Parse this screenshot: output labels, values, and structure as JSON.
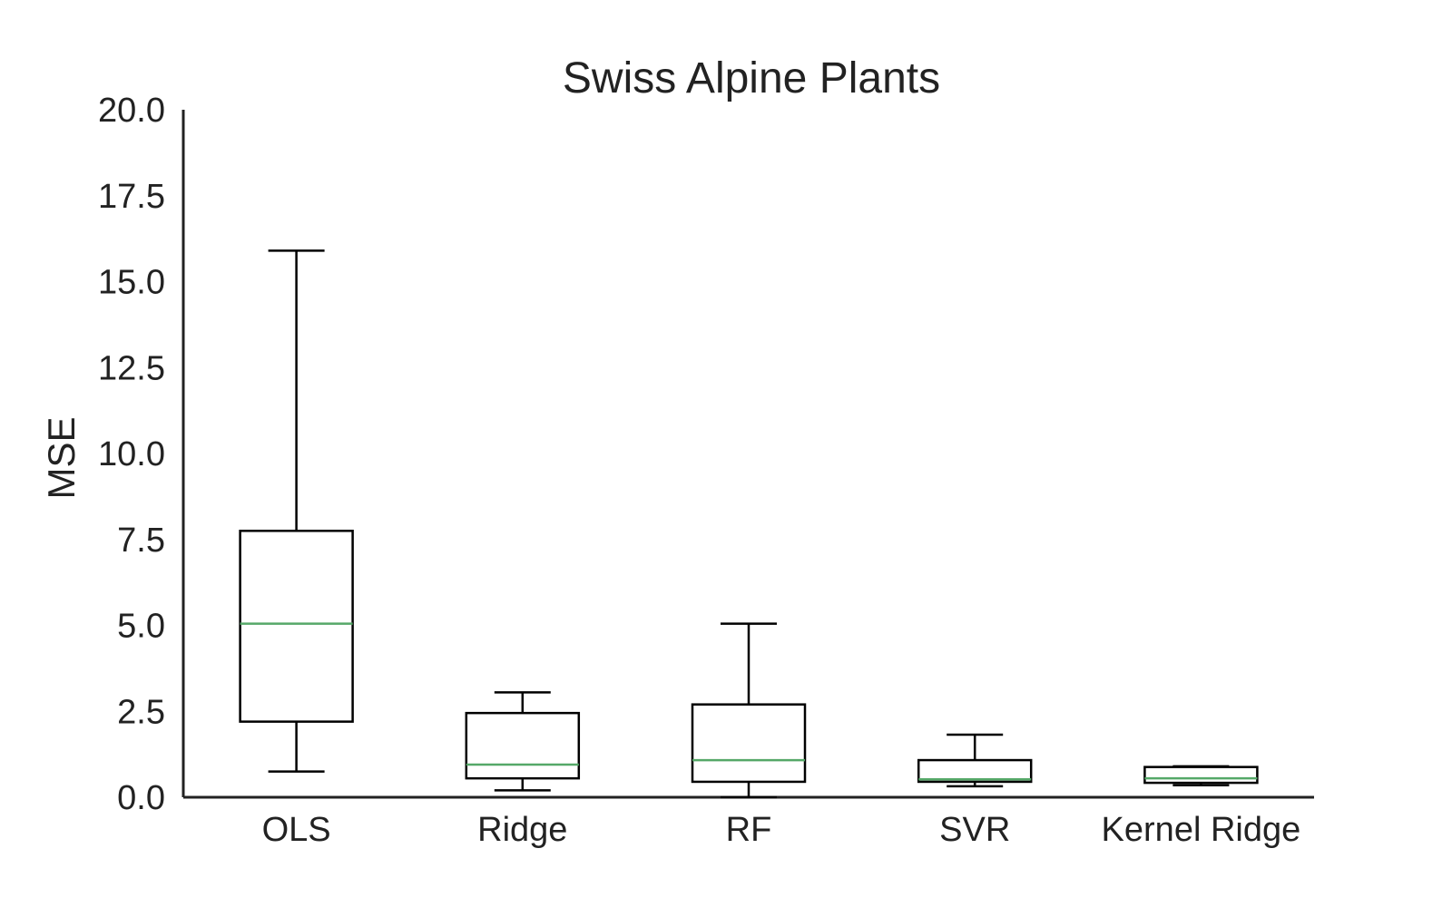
{
  "chart_data": {
    "type": "box",
    "title": "Swiss Alpine Plants",
    "xlabel": "",
    "ylabel": "MSE",
    "ylim": [
      0,
      20
    ],
    "yticks": [
      "0.0",
      "2.5",
      "5.0",
      "7.5",
      "10.0",
      "12.5",
      "15.0",
      "17.5",
      "20.0"
    ],
    "ytick_values": [
      0,
      2.5,
      5,
      7.5,
      10,
      12.5,
      15,
      17.5,
      20
    ],
    "categories": [
      "OLS",
      "Ridge",
      "RF",
      "SVR",
      "Kernel Ridge"
    ],
    "boxes": [
      {
        "category": "OLS",
        "whisker_low": 0.75,
        "q1": 2.2,
        "median": 5.05,
        "q3": 7.75,
        "whisker_high": 15.9
      },
      {
        "category": "Ridge",
        "whisker_low": 0.2,
        "q1": 0.55,
        "median": 0.95,
        "q3": 2.45,
        "whisker_high": 3.05
      },
      {
        "category": "RF",
        "whisker_low": 0.0,
        "q1": 0.45,
        "median": 1.08,
        "q3": 2.7,
        "whisker_high": 5.05
      },
      {
        "category": "SVR",
        "whisker_low": 0.32,
        "q1": 0.45,
        "median": 0.52,
        "q3": 1.08,
        "whisker_high": 1.82
      },
      {
        "category": "Kernel Ridge",
        "whisker_low": 0.35,
        "q1": 0.42,
        "median": 0.55,
        "q3": 0.88,
        "whisker_high": 0.9
      }
    ],
    "colors": {
      "box": "#000000",
      "median": "#55a868",
      "axis": "#222222"
    },
    "grid": false
  }
}
